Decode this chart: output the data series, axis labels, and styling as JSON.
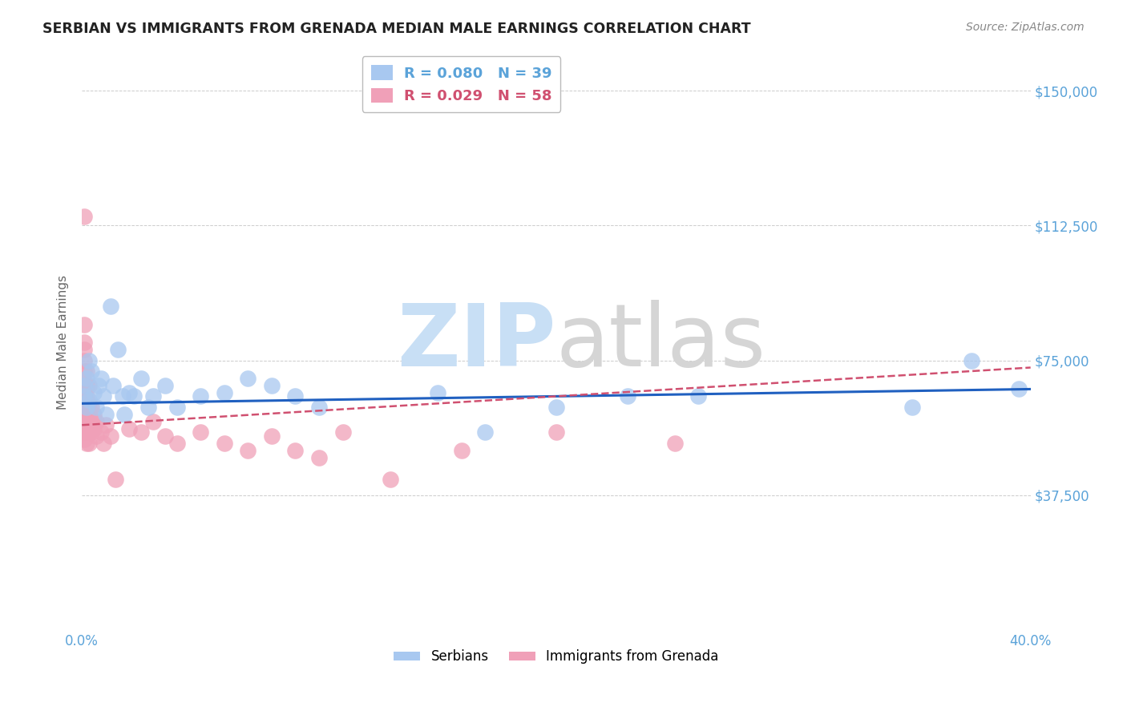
{
  "title": "SERBIAN VS IMMIGRANTS FROM GRENADA MEDIAN MALE EARNINGS CORRELATION CHART",
  "source": "Source: ZipAtlas.com",
  "ylabel": "Median Male Earnings",
  "yticks": [
    0,
    37500,
    75000,
    112500,
    150000
  ],
  "ytick_labels": [
    "",
    "$37,500",
    "$75,000",
    "$112,500",
    "$150,000"
  ],
  "xlim": [
    0.0,
    0.4
  ],
  "ylim": [
    0,
    160000
  ],
  "series_serbian": {
    "color": "#a8c8f0",
    "line_color": "#2060c0",
    "x": [
      0.001,
      0.001,
      0.002,
      0.002,
      0.003,
      0.003,
      0.004,
      0.005,
      0.006,
      0.007,
      0.008,
      0.009,
      0.01,
      0.012,
      0.013,
      0.015,
      0.017,
      0.018,
      0.02,
      0.022,
      0.025,
      0.028,
      0.03,
      0.035,
      0.04,
      0.05,
      0.06,
      0.07,
      0.08,
      0.09,
      0.1,
      0.15,
      0.17,
      0.2,
      0.23,
      0.26,
      0.35,
      0.375,
      0.395
    ],
    "y": [
      65000,
      68000,
      62000,
      70000,
      64000,
      75000,
      72000,
      66000,
      62000,
      68000,
      70000,
      65000,
      60000,
      90000,
      68000,
      78000,
      65000,
      60000,
      66000,
      65000,
      70000,
      62000,
      65000,
      68000,
      62000,
      65000,
      66000,
      70000,
      68000,
      65000,
      62000,
      66000,
      55000,
      62000,
      65000,
      65000,
      62000,
      75000,
      67000
    ]
  },
  "series_grenada": {
    "color": "#f0a0b8",
    "line_color": "#d05070",
    "x": [
      0.001,
      0.001,
      0.001,
      0.001,
      0.001,
      0.001,
      0.001,
      0.001,
      0.001,
      0.001,
      0.001,
      0.001,
      0.001,
      0.001,
      0.001,
      0.001,
      0.002,
      0.002,
      0.002,
      0.002,
      0.002,
      0.002,
      0.002,
      0.002,
      0.003,
      0.003,
      0.003,
      0.003,
      0.003,
      0.003,
      0.004,
      0.004,
      0.004,
      0.005,
      0.005,
      0.006,
      0.006,
      0.008,
      0.009,
      0.01,
      0.012,
      0.014,
      0.02,
      0.025,
      0.03,
      0.035,
      0.04,
      0.05,
      0.06,
      0.07,
      0.08,
      0.09,
      0.1,
      0.11,
      0.13,
      0.16,
      0.2,
      0.25
    ],
    "y": [
      115000,
      85000,
      80000,
      78000,
      75000,
      72000,
      68000,
      66000,
      65000,
      63000,
      62000,
      60000,
      58000,
      56000,
      55000,
      53000,
      72000,
      68000,
      65000,
      62000,
      60000,
      58000,
      55000,
      52000,
      68000,
      63000,
      60000,
      58000,
      55000,
      52000,
      62000,
      58000,
      55000,
      60000,
      56000,
      58000,
      54000,
      55000,
      52000,
      57000,
      54000,
      42000,
      56000,
      55000,
      58000,
      54000,
      52000,
      55000,
      52000,
      50000,
      54000,
      50000,
      48000,
      55000,
      42000,
      50000,
      55000,
      52000
    ]
  },
  "title_color": "#222222",
  "axis_color": "#5ba3d9",
  "grid_color": "#cccccc",
  "watermark_color_zip": "#cce0f5",
  "watermark_color_atlas": "#d8d8d8",
  "legend_serbian_label": "R = 0.080   N = 39",
  "legend_grenada_label": "R = 0.029   N = 58",
  "bottom_serbian_label": "Serbians",
  "bottom_grenada_label": "Immigrants from Grenada"
}
